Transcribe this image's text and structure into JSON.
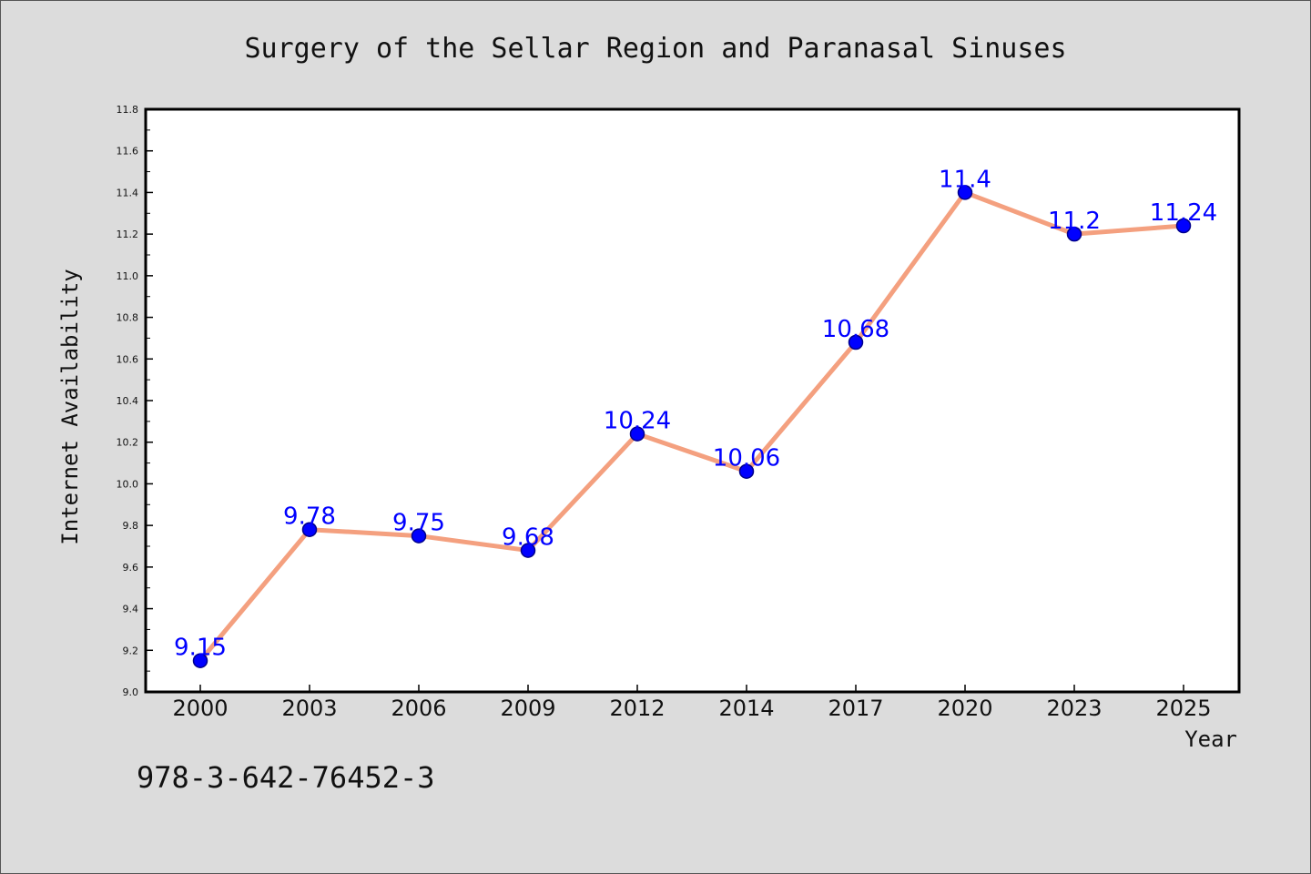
{
  "chart_data": {
    "type": "line",
    "title": "Surgery of the Sellar Region and Paranasal Sinuses",
    "xlabel": "Year",
    "ylabel": "Internet Availability",
    "categories": [
      "2000",
      "2003",
      "2006",
      "2009",
      "2012",
      "2014",
      "2017",
      "2020",
      "2023",
      "2025"
    ],
    "values": [
      9.15,
      9.78,
      9.75,
      9.68,
      10.24,
      10.06,
      10.68,
      11.4,
      11.2,
      11.24
    ],
    "data_labels": [
      "9.15",
      "9.78",
      "9.75",
      "9.68",
      "10.24",
      "10.06",
      "10.68",
      "11.4",
      "11.2",
      "11.24"
    ],
    "ylim": [
      9.0,
      11.8
    ],
    "yticks": [
      "9.0",
      "9.2",
      "9.4",
      "9.6",
      "9.8",
      "10.0",
      "10.2",
      "10.4",
      "10.6",
      "10.8",
      "11.0",
      "11.2",
      "11.4",
      "11.6",
      "11.8"
    ],
    "grid": false,
    "legend": "none",
    "colors": {
      "line": "#f4a07f",
      "marker": "#0000ff",
      "data_label": "#0000ff",
      "background": "#dcdcdc",
      "plot_background": "#ffffff"
    }
  },
  "footer_text": "978-3-642-76452-3"
}
